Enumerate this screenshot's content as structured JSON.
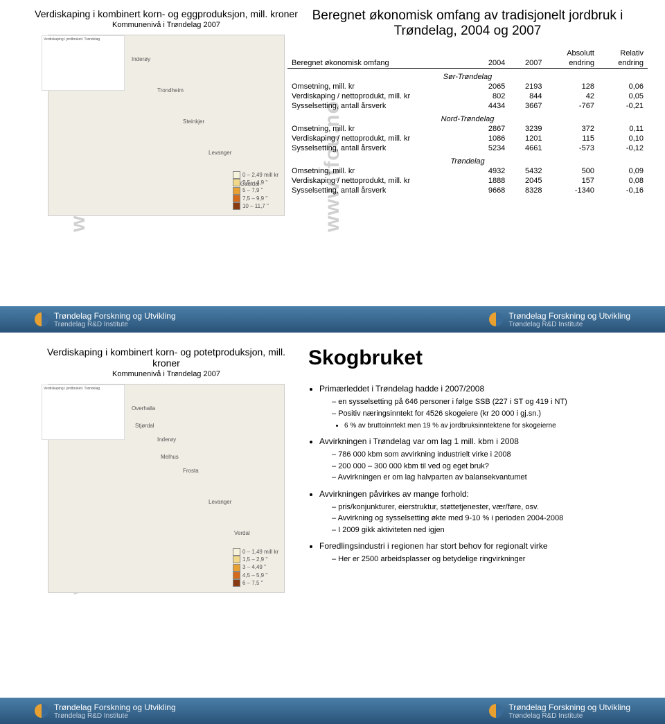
{
  "watermark": "www.tfou.no",
  "slide1": {
    "left_title": "Verdiskaping i kombinert korn- og eggproduksjon, mill. kroner",
    "left_sub": "Kommunenivå i Trøndelag 2007",
    "mini_chart_title": "Verdiskaping i jordbruket i Trøndelag",
    "map_labels": [
      "Inderøy",
      "Trondheim",
      "Steinkjer",
      "Levanger",
      "M Gauldal"
    ],
    "legend": {
      "rows": [
        {
          "label": "0 – 2,49 mill kr",
          "color": "#f7f2dc"
        },
        {
          "label": "2,5 – 4,9  \"",
          "color": "#f2d98a"
        },
        {
          "label": "5 – 7,9  \"",
          "color": "#e8a030"
        },
        {
          "label": "7,5 – 9,9  \"",
          "color": "#d46a1a"
        },
        {
          "label": "10 – 11,7  \"",
          "color": "#8a3a10"
        }
      ]
    },
    "main_title": "Beregnet økonomisk omfang av tradisjonelt jordbruk i Trøndelag, 2004 og 2007",
    "table": {
      "head1": [
        "",
        "",
        "",
        "Absolutt",
        "Relativ"
      ],
      "head2": [
        "Beregnet økonomisk omfang",
        "2004",
        "2007",
        "endring",
        "endring"
      ],
      "sections": [
        {
          "title": "Sør-Trøndelag",
          "rows": [
            [
              "Omsetning, mill. kr",
              "2065",
              "2193",
              "128",
              "0,06"
            ],
            [
              "Verdiskaping / nettoprodukt, mill. kr",
              "802",
              "844",
              "42",
              "0,05"
            ],
            [
              "Sysselsetting, antall årsverk",
              "4434",
              "3667",
              "-767",
              "-0,21"
            ]
          ]
        },
        {
          "title": "Nord-Trøndelag",
          "rows": [
            [
              "Omsetning, mill. kr",
              "2867",
              "3239",
              "372",
              "0,11"
            ],
            [
              "Verdiskaping / nettoprodukt, mill. kr",
              "1086",
              "1201",
              "115",
              "0,10"
            ],
            [
              "Sysselsetting, antall årsverk",
              "5234",
              "4661",
              "-573",
              "-0,12"
            ]
          ]
        },
        {
          "title": "Trøndelag",
          "rows": [
            [
              "Omsetning, mill. kr",
              "4932",
              "5432",
              "500",
              "0,09"
            ],
            [
              "Verdiskaping / nettoprodukt, mill. kr",
              "1888",
              "2045",
              "157",
              "0,08"
            ],
            [
              "Sysselsetting, antall årsverk",
              "9668",
              "8328",
              "-1340",
              "-0,16"
            ]
          ]
        }
      ]
    }
  },
  "footer": {
    "org": "Trøndelag Forskning og Utvikling",
    "org_sub": "Trøndelag R&D Institute"
  },
  "slide2": {
    "left_title": "Verdiskaping i kombinert korn- og potetproduksjon, mill. kroner",
    "left_sub": "Kommunenivå i Trøndelag 2007",
    "mini_chart_title": "Verdiskaping i jordbruket i Trøndelag",
    "map_labels": [
      "Overhalla",
      "Inderøy",
      "Frosta",
      "Levanger",
      "Verdal",
      "Stjørdal",
      "Melhus"
    ],
    "legend": {
      "rows": [
        {
          "label": "0 – 1,49 mill kr",
          "color": "#f7f2dc"
        },
        {
          "label": "1,5 – 2,9  \"",
          "color": "#f2d98a"
        },
        {
          "label": "3 – 4,49  \"",
          "color": "#e8a030"
        },
        {
          "label": "4,5 – 5,9  \"",
          "color": "#d46a1a"
        },
        {
          "label": "6 – 7,5  \"",
          "color": "#8a3a10"
        }
      ]
    },
    "big_title": "Skogbruket",
    "bullets": [
      {
        "text": "Primærleddet  i Trøndelag hadde i 2007/2008",
        "sub": [
          "en sysselsetting på 646 personer i følge SSB (227 i ST og 419 i NT)",
          "Positiv næringsinntekt for 4526 skogeiere (kr 20 000 i gj.sn.)"
        ],
        "subsub": [
          "6 % av bruttoinntekt men 19 % av jordbruksinntektene for skogeierne"
        ]
      },
      {
        "text": "Avvirkningen i Trøndelag var om lag 1 mill. kbm i 2008",
        "sub": [
          "786 000 kbm som avvirkning industrielt virke i 2008",
          "200 000 – 300 000 kbm til ved og eget bruk?",
          "Avvirkningen er om lag halvparten av balansekvantumet"
        ]
      },
      {
        "text": "Avvirkningen påvirkes av mange forhold:",
        "sub": [
          "pris/konjunkturer, eierstruktur, støttetjenester, vær/føre, osv.",
          "Avvirkning og sysselsetting økte med 9-10 % i perioden 2004-2008",
          "I 2009 gikk aktiviteten ned igjen"
        ]
      },
      {
        "text": "Foredlingsindustri i regionen har stort behov for regionalt virke",
        "sub": [
          "Her er 2500 arbeidsplasser og betydelige ringvirkninger"
        ]
      }
    ]
  }
}
